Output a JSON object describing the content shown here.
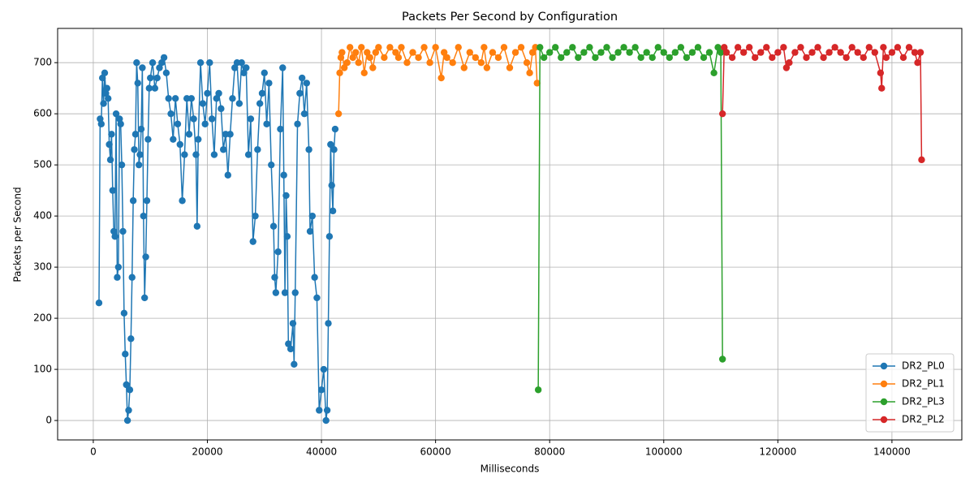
{
  "chart_data": {
    "type": "line",
    "title": "Packets Per Second by Configuration",
    "x_label": "Milliseconds",
    "y_label": "Packets per Second",
    "xlim": [
      -6250,
      152250
    ],
    "ylim": [
      -38,
      767
    ],
    "xticks": [
      0,
      20000,
      40000,
      60000,
      80000,
      100000,
      120000,
      140000
    ],
    "yticks": [
      0,
      100,
      200,
      300,
      400,
      500,
      600,
      700
    ],
    "grid": true,
    "legend": "lower right",
    "series": [
      {
        "name": "DR2_PL0",
        "color": "#1f77b4",
        "x": [
          1000,
          1200,
          1400,
          1600,
          1800,
          2000,
          2200,
          2400,
          2600,
          2800,
          3000,
          3200,
          3400,
          3600,
          3800,
          4000,
          4200,
          4400,
          4600,
          4800,
          5000,
          5200,
          5400,
          5600,
          5800,
          6000,
          6200,
          6400,
          6600,
          6800,
          7000,
          7200,
          7400,
          7600,
          7800,
          8000,
          8200,
          8400,
          8600,
          8800,
          9000,
          9200,
          9400,
          9600,
          9800,
          10000,
          10400,
          10800,
          11200,
          11600,
          12000,
          12400,
          12800,
          13200,
          13600,
          14000,
          14400,
          14800,
          15200,
          15600,
          16000,
          16400,
          16800,
          17200,
          17600,
          18000,
          18200,
          18400,
          18800,
          19200,
          19600,
          20000,
          20400,
          20800,
          21200,
          21600,
          22000,
          22400,
          22800,
          23200,
          23600,
          24000,
          24400,
          24800,
          25200,
          25600,
          26000,
          26400,
          26800,
          27200,
          27600,
          28000,
          28400,
          28800,
          29200,
          29600,
          30000,
          30400,
          30800,
          31200,
          31600,
          31800,
          32000,
          32400,
          32800,
          33200,
          33400,
          33600,
          33800,
          34000,
          34200,
          34600,
          35000,
          35200,
          35400,
          35800,
          36200,
          36600,
          37000,
          37400,
          37800,
          38000,
          38400,
          38800,
          39200,
          39600,
          40000,
          40400,
          40800,
          41000,
          41200,
          41400,
          41600,
          41800,
          42000,
          42200,
          42400
        ],
        "values": [
          230,
          590,
          580,
          670,
          620,
          680,
          640,
          650,
          630,
          540,
          510,
          560,
          450,
          370,
          360,
          600,
          280,
          300,
          590,
          580,
          500,
          370,
          210,
          130,
          70,
          0,
          20,
          60,
          160,
          280,
          430,
          530,
          560,
          700,
          660,
          500,
          520,
          570,
          690,
          400,
          240,
          320,
          430,
          550,
          650,
          670,
          700,
          650,
          670,
          690,
          700,
          710,
          680,
          630,
          600,
          550,
          630,
          580,
          540,
          430,
          520,
          630,
          560,
          630,
          590,
          520,
          380,
          550,
          700,
          620,
          580,
          640,
          700,
          590,
          520,
          630,
          640,
          610,
          530,
          560,
          480,
          560,
          630,
          690,
          700,
          620,
          700,
          680,
          690,
          520,
          590,
          350,
          400,
          530,
          620,
          640,
          680,
          580,
          660,
          500,
          380,
          280,
          250,
          330,
          570,
          690,
          480,
          250,
          440,
          360,
          150,
          140,
          190,
          110,
          250,
          580,
          640,
          670,
          600,
          660,
          530,
          370,
          400,
          280,
          240,
          20,
          60,
          100,
          0,
          20,
          190,
          360,
          540,
          460,
          410,
          530,
          570
        ]
      },
      {
        "name": "DR2_PL1",
        "color": "#ff7f0e",
        "x": [
          43000,
          43200,
          43400,
          43600,
          44000,
          44500,
          45000,
          45500,
          46000,
          46500,
          47000,
          47500,
          48000,
          48500,
          49000,
          49500,
          50000,
          51000,
          52000,
          53000,
          53500,
          54000,
          55000,
          56000,
          57000,
          58000,
          59000,
          60000,
          61000,
          61500,
          62000,
          63000,
          64000,
          65000,
          66000,
          67000,
          68000,
          68500,
          69000,
          70000,
          71000,
          72000,
          73000,
          74000,
          75000,
          76000,
          76500,
          77000,
          77500,
          77800
        ],
        "values": [
          600,
          680,
          710,
          720,
          690,
          700,
          730,
          710,
          720,
          700,
          730,
          680,
          720,
          710,
          690,
          720,
          730,
          710,
          730,
          720,
          710,
          730,
          700,
          720,
          710,
          730,
          700,
          730,
          670,
          720,
          710,
          700,
          730,
          690,
          720,
          710,
          700,
          730,
          690,
          720,
          710,
          730,
          690,
          720,
          730,
          700,
          680,
          720,
          730,
          660
        ]
      },
      {
        "name": "DR2_PL3",
        "color": "#2ca02c",
        "x": [
          78000,
          78300,
          79000,
          80000,
          81000,
          82000,
          83000,
          84000,
          85000,
          86000,
          87000,
          88000,
          89000,
          90000,
          91000,
          92000,
          93000,
          94000,
          95000,
          96000,
          97000,
          98000,
          99000,
          100000,
          101000,
          102000,
          103000,
          104000,
          105000,
          106000,
          107000,
          108000,
          108800,
          109500,
          110000,
          110300
        ],
        "values": [
          60,
          730,
          710,
          720,
          730,
          710,
          720,
          730,
          710,
          720,
          730,
          710,
          720,
          730,
          710,
          720,
          730,
          720,
          730,
          710,
          720,
          710,
          730,
          720,
          710,
          720,
          730,
          710,
          720,
          730,
          710,
          720,
          680,
          730,
          720,
          120
        ]
      },
      {
        "name": "DR2_PL2",
        "color": "#d62728",
        "x": [
          110300,
          110600,
          111000,
          112000,
          113000,
          114000,
          115000,
          116000,
          117000,
          118000,
          119000,
          120000,
          121000,
          121500,
          122000,
          123000,
          124000,
          125000,
          126000,
          127000,
          128000,
          129000,
          130000,
          131000,
          132000,
          133000,
          134000,
          135000,
          136000,
          137000,
          138000,
          138200,
          138500,
          139000,
          140000,
          141000,
          142000,
          143000,
          144000,
          144500,
          145000,
          145200
        ],
        "values": [
          600,
          730,
          720,
          710,
          730,
          720,
          730,
          710,
          720,
          730,
          710,
          720,
          730,
          690,
          700,
          720,
          730,
          710,
          720,
          730,
          710,
          720,
          730,
          720,
          710,
          730,
          720,
          710,
          730,
          720,
          680,
          650,
          730,
          710,
          720,
          730,
          710,
          730,
          720,
          700,
          720,
          510
        ]
      }
    ]
  }
}
